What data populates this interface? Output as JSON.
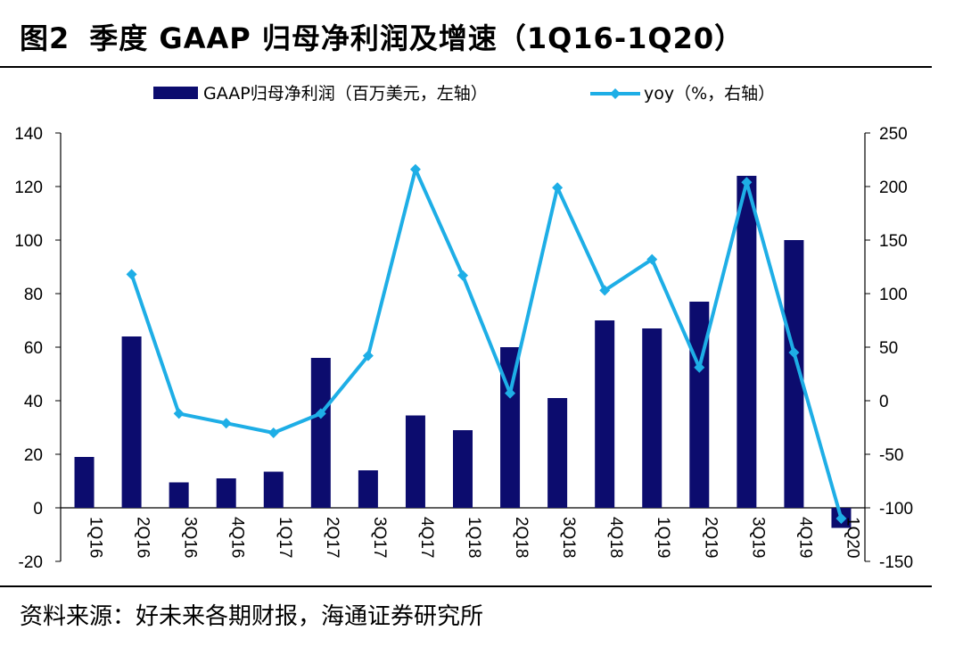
{
  "header": {
    "figure_no": "图2",
    "title": "季度 GAAP 归母净利润及增速（1Q16-1Q20）"
  },
  "footer": {
    "source": "资料来源：好未来各期财报，海通证券研究所"
  },
  "chart_data": {
    "type": "bar+line",
    "categories": [
      "1Q16",
      "2Q16",
      "3Q16",
      "4Q16",
      "1Q17",
      "2Q17",
      "3Q17",
      "4Q17",
      "1Q18",
      "2Q18",
      "3Q18",
      "4Q18",
      "1Q19",
      "2Q19",
      "3Q19",
      "4Q19",
      "1Q20"
    ],
    "series": [
      {
        "name": "GAAP归母净利润（百万美元，左轴）",
        "type": "bar",
        "axis": "left",
        "color": "#0c0c6e",
        "values": [
          19,
          64,
          9.5,
          11,
          13.5,
          56,
          14,
          34.5,
          29,
          60,
          41,
          70,
          67,
          77,
          124,
          100,
          -7.5
        ]
      },
      {
        "name": "yoy（%，右轴）",
        "type": "line",
        "axis": "right",
        "color": "#1eaee6",
        "values": [
          null,
          118,
          -12,
          -21,
          -30,
          -12,
          42,
          216,
          117,
          7,
          199,
          103,
          132,
          31,
          204,
          45,
          -110
        ]
      }
    ],
    "y_left": {
      "min": -20,
      "max": 140,
      "ticks": [
        -20,
        0,
        20,
        40,
        60,
        80,
        100,
        120,
        140
      ]
    },
    "y_right": {
      "min": -150,
      "max": 250,
      "ticks": [
        -150,
        -100,
        -50,
        0,
        50,
        100,
        150,
        200,
        250
      ]
    },
    "legend": "top-center",
    "grid": false
  }
}
